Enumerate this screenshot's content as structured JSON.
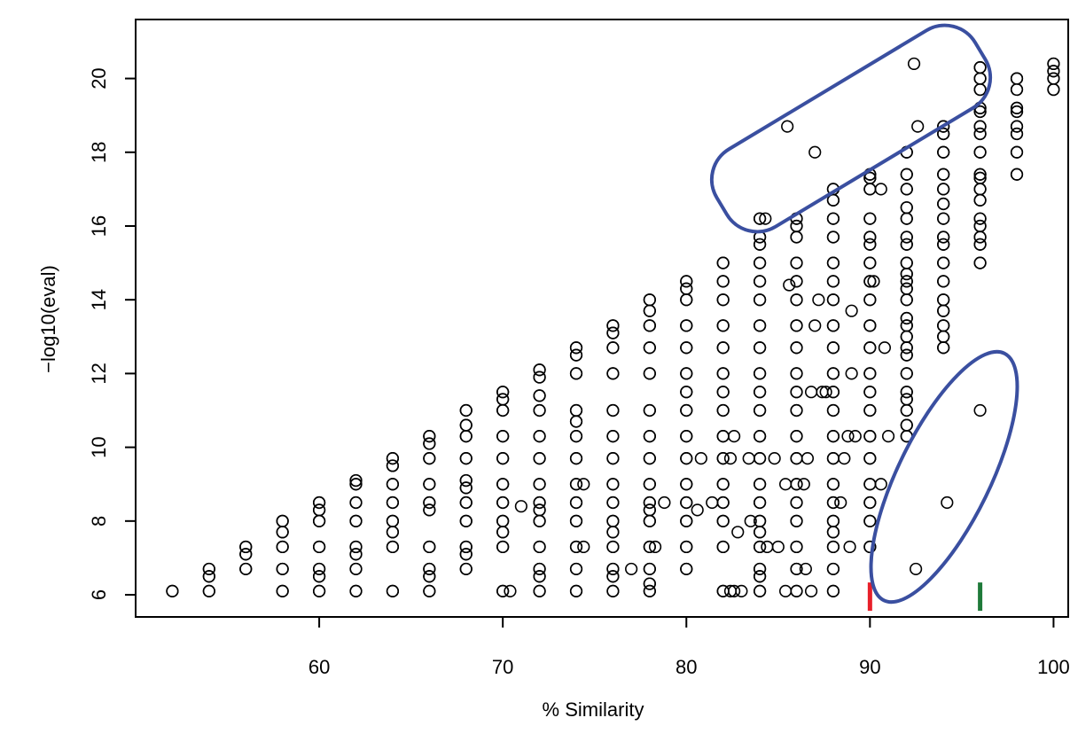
{
  "chart_data": {
    "type": "scatter",
    "title": "",
    "xlabel": "% Similarity",
    "ylabel": "−log10(eval)",
    "xlim": [
      50,
      100.8
    ],
    "ylim": [
      5.4,
      21.6
    ],
    "x_ticks": [
      60,
      70,
      80,
      90,
      100
    ],
    "y_ticks": [
      6,
      8,
      10,
      12,
      14,
      16,
      18,
      20
    ],
    "grid": false,
    "legend": "none",
    "point_color": "#000000",
    "annotation_color": "#3a4fa0",
    "series": [
      {
        "name": "",
        "columns": [
          {
            "x": 52,
            "y": [
              6.1
            ]
          },
          {
            "x": 54,
            "y": [
              6.1,
              6.5,
              6.7
            ]
          },
          {
            "x": 56,
            "y": [
              6.7,
              7.1,
              7.3
            ]
          },
          {
            "x": 58,
            "y": [
              6.1,
              6.7,
              7.3,
              7.7,
              8.0
            ]
          },
          {
            "x": 60,
            "y": [
              6.1,
              6.5,
              6.7,
              7.3,
              8.0,
              8.3,
              8.5
            ]
          },
          {
            "x": 62,
            "y": [
              6.1,
              6.7,
              7.1,
              7.3,
              8.0,
              8.5,
              9.0,
              9.1
            ]
          },
          {
            "x": 64,
            "y": [
              6.1,
              7.3,
              7.7,
              8.0,
              8.5,
              9.0,
              9.5,
              9.7
            ]
          },
          {
            "x": 66,
            "y": [
              6.1,
              6.5,
              6.7,
              7.3,
              8.3,
              8.5,
              9.0,
              9.7,
              10.1,
              10.3
            ]
          },
          {
            "x": 68,
            "y": [
              6.7,
              7.1,
              7.3,
              8.0,
              8.5,
              8.9,
              9.1,
              9.7,
              10.3,
              10.6,
              11.0
            ]
          },
          {
            "x": 70,
            "y": [
              6.1,
              7.3,
              7.7,
              8.0,
              8.5,
              9.0,
              9.7,
              10.3,
              11.0,
              11.3,
              11.5
            ]
          },
          {
            "x": 72,
            "y": [
              6.1,
              6.5,
              6.7,
              7.3,
              8.0,
              8.3,
              8.5,
              9.0,
              9.7,
              10.3,
              11.0,
              11.4,
              11.9,
              12.1
            ]
          },
          {
            "x": 74,
            "y": [
              6.1,
              6.7,
              7.3,
              8.0,
              8.5,
              9.0,
              9.7,
              10.3,
              10.7,
              11.0,
              12.0,
              12.5,
              12.7
            ]
          },
          {
            "x": 76,
            "y": [
              6.1,
              6.5,
              6.7,
              7.3,
              7.7,
              8.0,
              8.5,
              9.0,
              9.7,
              10.3,
              11.0,
              12.0,
              12.7,
              13.1,
              13.3
            ]
          },
          {
            "x": 78,
            "y": [
              6.1,
              6.3,
              6.7,
              7.3,
              8.0,
              8.3,
              8.5,
              9.0,
              9.7,
              10.3,
              11.0,
              12.0,
              12.7,
              13.3,
              13.7,
              14.0
            ]
          },
          {
            "x": 80,
            "y": [
              6.7,
              7.3,
              8.0,
              8.5,
              9.0,
              9.7,
              10.3,
              11.0,
              11.5,
              12.0,
              12.7,
              13.3,
              14.0,
              14.3,
              14.5
            ]
          },
          {
            "x": 82,
            "y": [
              6.1,
              7.3,
              8.0,
              8.5,
              9.0,
              9.7,
              10.3,
              11.0,
              11.5,
              12.0,
              12.7,
              13.3,
              14.0,
              14.5,
              15.0
            ]
          },
          {
            "x": 84,
            "y": [
              6.1,
              6.5,
              6.7,
              7.3,
              7.7,
              8.0,
              8.5,
              9.0,
              9.7,
              10.3,
              11.0,
              11.5,
              12.0,
              12.7,
              13.3,
              14.0,
              14.5,
              15.0,
              15.5,
              15.7,
              16.2
            ]
          },
          {
            "x": 86,
            "y": [
              6.1,
              6.7,
              7.3,
              8.0,
              8.5,
              9.0,
              9.7,
              10.3,
              11.0,
              11.5,
              12.0,
              12.7,
              13.3,
              14.0,
              14.5,
              15.0,
              15.7,
              16.0,
              16.2
            ]
          },
          {
            "x": 88,
            "y": [
              6.1,
              6.7,
              7.3,
              7.7,
              8.0,
              8.5,
              9.0,
              9.7,
              10.3,
              11.0,
              11.5,
              12.0,
              12.7,
              13.3,
              14.0,
              14.5,
              15.0,
              15.7,
              16.2,
              16.7,
              17.0
            ]
          },
          {
            "x": 90,
            "y": [
              7.3,
              8.0,
              8.5,
              9.0,
              9.7,
              10.3,
              11.0,
              11.5,
              12.0,
              12.7,
              13.3,
              14.0,
              14.5,
              15.0,
              15.5,
              15.7,
              16.2,
              17.0,
              17.3,
              17.4
            ]
          },
          {
            "x": 92,
            "y": [
              10.3,
              10.6,
              11.0,
              11.3,
              11.5,
              12.0,
              12.5,
              12.7,
              13.0,
              13.3,
              13.5,
              14.0,
              14.3,
              14.5,
              14.7,
              15.0,
              15.5,
              15.7,
              16.2,
              16.5,
              17.0,
              17.4,
              18.0
            ]
          },
          {
            "x": 94,
            "y": [
              12.7,
              13.0,
              13.3,
              13.7,
              14.0,
              14.5,
              15.0,
              15.5,
              15.7,
              16.2,
              16.6,
              17.0,
              17.4,
              18.0,
              18.5,
              18.7
            ]
          },
          {
            "x": 96,
            "y": [
              15.0,
              15.5,
              15.7,
              16.0,
              16.2,
              16.7,
              17.0,
              17.3,
              17.4,
              18.0,
              18.5,
              18.7,
              19.1,
              19.2,
              19.7,
              20.0,
              20.3
            ]
          },
          {
            "x": 98,
            "y": [
              17.4,
              18.0,
              18.5,
              18.7,
              19.1,
              19.2,
              19.7,
              20.0
            ]
          },
          {
            "x": 100,
            "y": [
              19.7,
              20.0,
              20.2,
              20.4
            ]
          }
        ],
        "points": [
          [
            70.4,
            6.1
          ],
          [
            71.0,
            8.4
          ],
          [
            74.4,
            9.0
          ],
          [
            74.4,
            7.3
          ],
          [
            77.0,
            6.7
          ],
          [
            78.8,
            8.5
          ],
          [
            78.3,
            7.3
          ],
          [
            80.8,
            9.7
          ],
          [
            80.6,
            8.3
          ],
          [
            81.4,
            8.5
          ],
          [
            82.4,
            6.1
          ],
          [
            82.6,
            6.1
          ],
          [
            83.0,
            6.1
          ],
          [
            82.6,
            10.3
          ],
          [
            82.4,
            9.7
          ],
          [
            83.4,
            9.7
          ],
          [
            82.8,
            7.7
          ],
          [
            83.5,
            8.0
          ],
          [
            84.8,
            9.7
          ],
          [
            84.4,
            7.3
          ],
          [
            85.0,
            7.3
          ],
          [
            85.4,
            6.1
          ],
          [
            85.6,
            14.4
          ],
          [
            85.4,
            9.0
          ],
          [
            86.4,
            9.0
          ],
          [
            86.5,
            6.7
          ],
          [
            86.6,
            9.7
          ],
          [
            86.8,
            11.5
          ],
          [
            87.0,
            13.3
          ],
          [
            86.8,
            6.1
          ],
          [
            87.2,
            14.0
          ],
          [
            87.4,
            11.5
          ],
          [
            87.6,
            11.5
          ],
          [
            88.4,
            8.5
          ],
          [
            88.6,
            9.7
          ],
          [
            88.8,
            10.3
          ],
          [
            89.0,
            13.7
          ],
          [
            89.0,
            12.0
          ],
          [
            88.9,
            7.3
          ],
          [
            89.2,
            10.3
          ],
          [
            90.6,
            17.0
          ],
          [
            90.2,
            14.5
          ],
          [
            90.6,
            9.0
          ],
          [
            90.8,
            12.7
          ],
          [
            91.0,
            10.3
          ],
          [
            85.5,
            18.7
          ],
          [
            87.0,
            18.0
          ],
          [
            84.3,
            16.2
          ],
          [
            92.5,
            6.7
          ],
          [
            94.2,
            8.5
          ],
          [
            96.0,
            11.0
          ],
          [
            92.4,
            20.4
          ],
          [
            92.6,
            18.7
          ]
        ]
      }
    ],
    "markers": [
      {
        "x": 90,
        "y": 5.95,
        "color": "#e8202a"
      },
      {
        "x": 96,
        "y": 5.95,
        "color": "#1f7a3a"
      }
    ]
  }
}
